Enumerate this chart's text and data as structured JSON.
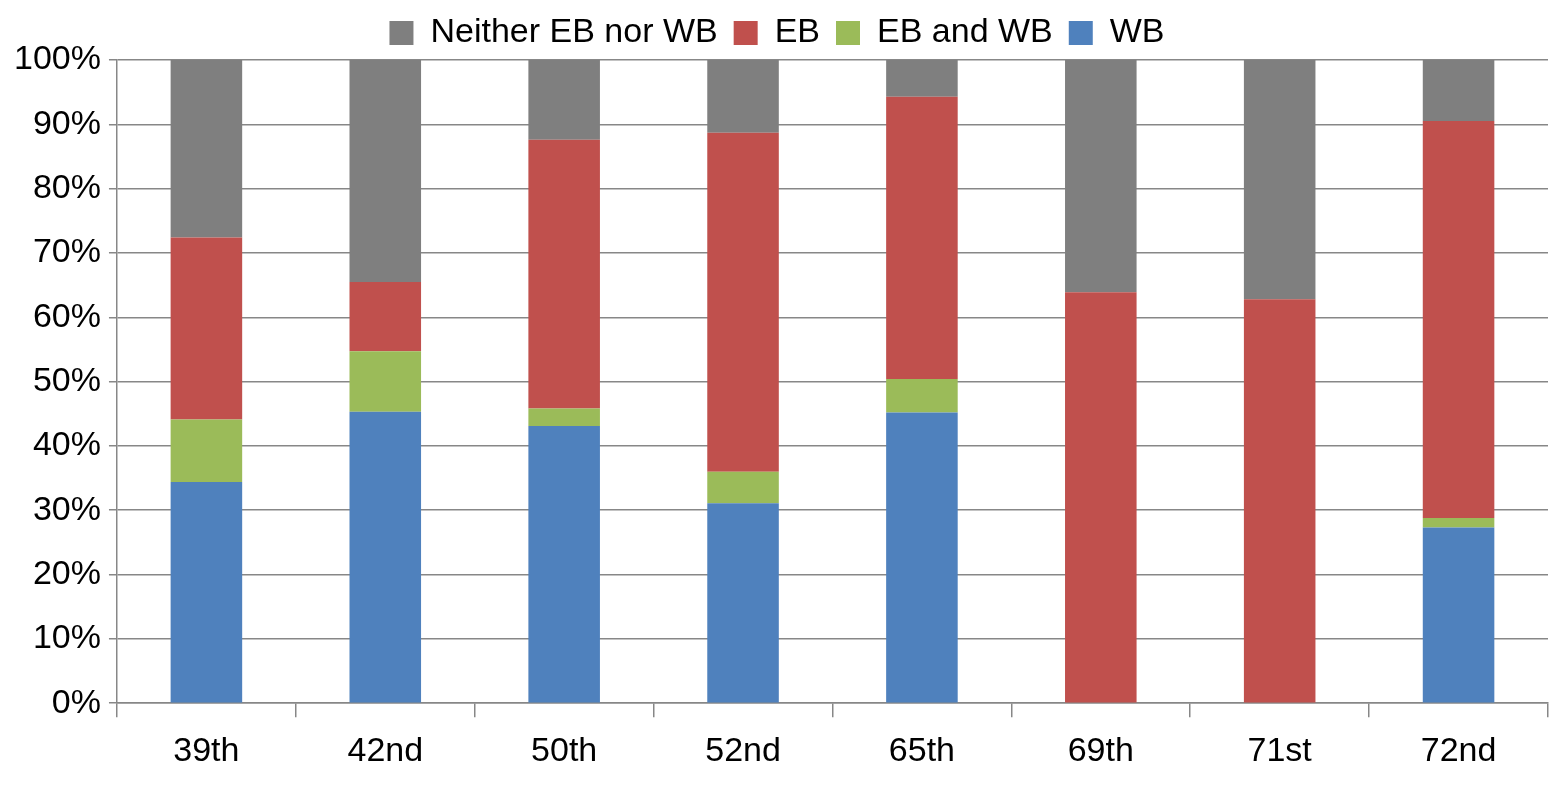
{
  "chart_data": {
    "type": "bar",
    "stacked": true,
    "categories": [
      "39th",
      "42nd",
      "50th",
      "52nd",
      "65th",
      "69th",
      "71st",
      "72nd"
    ],
    "series": [
      {
        "name": "WB",
        "color": "#4f81bd",
        "values": [
          34.4,
          45.3,
          43.1,
          31.1,
          45.2,
          0,
          0,
          27.3
        ]
      },
      {
        "name": "EB and WB",
        "color": "#9bbb59",
        "values": [
          9.7,
          9.4,
          2.7,
          4.9,
          5.2,
          0,
          0,
          1.5
        ]
      },
      {
        "name": "EB",
        "color": "#c0504d",
        "values": [
          28.3,
          10.8,
          41.8,
          52.7,
          43.9,
          63.9,
          62.8,
          61.7
        ]
      },
      {
        "name": "Neither EB nor WB",
        "color": "#7f7f7f",
        "values": [
          27.6,
          34.5,
          12.4,
          11.3,
          5.7,
          36.1,
          37.2,
          9.5
        ]
      }
    ],
    "ylim": [
      0,
      100
    ],
    "yticks": [
      {
        "value": 0,
        "label": "0%"
      },
      {
        "value": 10,
        "label": "10%"
      },
      {
        "value": 20,
        "label": "20%"
      },
      {
        "value": 30,
        "label": "30%"
      },
      {
        "value": 40,
        "label": "40%"
      },
      {
        "value": 50,
        "label": "50%"
      },
      {
        "value": 60,
        "label": "60%"
      },
      {
        "value": 70,
        "label": "70%"
      },
      {
        "value": 80,
        "label": "80%"
      },
      {
        "value": 90,
        "label": "90%"
      },
      {
        "value": 100,
        "label": "100%"
      }
    ],
    "grid": "y",
    "legend": "top"
  }
}
